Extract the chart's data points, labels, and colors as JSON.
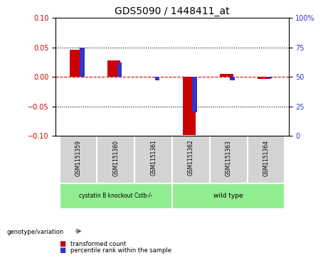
{
  "title": "GDS5090 / 1448411_at",
  "samples": [
    "GSM1151359",
    "GSM1151360",
    "GSM1151361",
    "GSM1151362",
    "GSM1151363",
    "GSM1151364"
  ],
  "red_values": [
    0.046,
    0.028,
    0.0,
    -0.098,
    0.005,
    -0.003
  ],
  "blue_values_pct": [
    75,
    62,
    47,
    20,
    47,
    49
  ],
  "ylim_left": [
    -0.1,
    0.1
  ],
  "ylim_right": [
    0,
    100
  ],
  "yticks_left": [
    -0.1,
    -0.05,
    0.0,
    0.05,
    0.1
  ],
  "yticks_right": [
    0,
    25,
    50,
    75,
    100
  ],
  "ytick_labels_right": [
    "0",
    "25",
    "50",
    "75",
    "100%"
  ],
  "group_bg_color": "#d3d3d3",
  "group_bar_color": "#90EE90",
  "red_bar_color": "#cc0000",
  "blue_bar_color": "#3333cc",
  "dotted_line_color": "#000000",
  "zero_line_color": "#cc0000",
  "legend_red_label": "transformed count",
  "legend_blue_label": "percentile rank within the sample",
  "genotype_label": "genotype/variation",
  "group1_label": "cystatin B knockout Cstb-/-",
  "group2_label": "wild type"
}
